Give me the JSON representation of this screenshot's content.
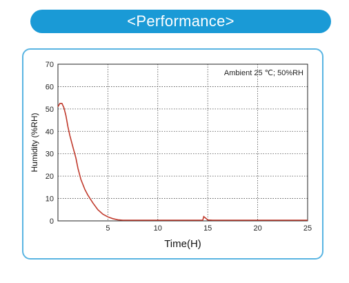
{
  "banner": {
    "title": "<Performance>"
  },
  "chart_data": {
    "type": "line",
    "xlabel": "Time(H)",
    "ylabel": "Humidity (%RH)",
    "annotation": "Ambient 25 ℃;  50%RH",
    "xlim": [
      0,
      25
    ],
    "ylim": [
      0,
      70
    ],
    "xticks": [
      5,
      10,
      15,
      20,
      25
    ],
    "yticks": [
      0,
      10,
      20,
      30,
      40,
      50,
      60,
      70
    ],
    "grid": true,
    "line_color": "#c0392b",
    "series": [
      {
        "x": [
          0,
          0.2,
          0.4,
          0.6,
          0.8,
          1.0,
          1.2,
          1.5,
          1.8,
          2.0,
          2.3,
          2.7,
          3.0,
          3.5,
          4.0,
          4.5,
          5.0,
          5.5,
          6.0,
          6.5,
          7.0,
          8.0,
          10,
          12,
          14,
          14.5,
          14.6,
          14.8,
          15.0,
          15.5,
          20,
          25
        ],
        "y": [
          51,
          52.5,
          52.5,
          50.5,
          47,
          42,
          38,
          33,
          28,
          23.5,
          18.5,
          14,
          11.5,
          8,
          5,
          3,
          1.8,
          1,
          0.5,
          0.3,
          0.3,
          0.3,
          0.3,
          0.3,
          0.3,
          0.3,
          1.9,
          1.2,
          0.4,
          0.3,
          0.3,
          0.3
        ]
      }
    ]
  }
}
